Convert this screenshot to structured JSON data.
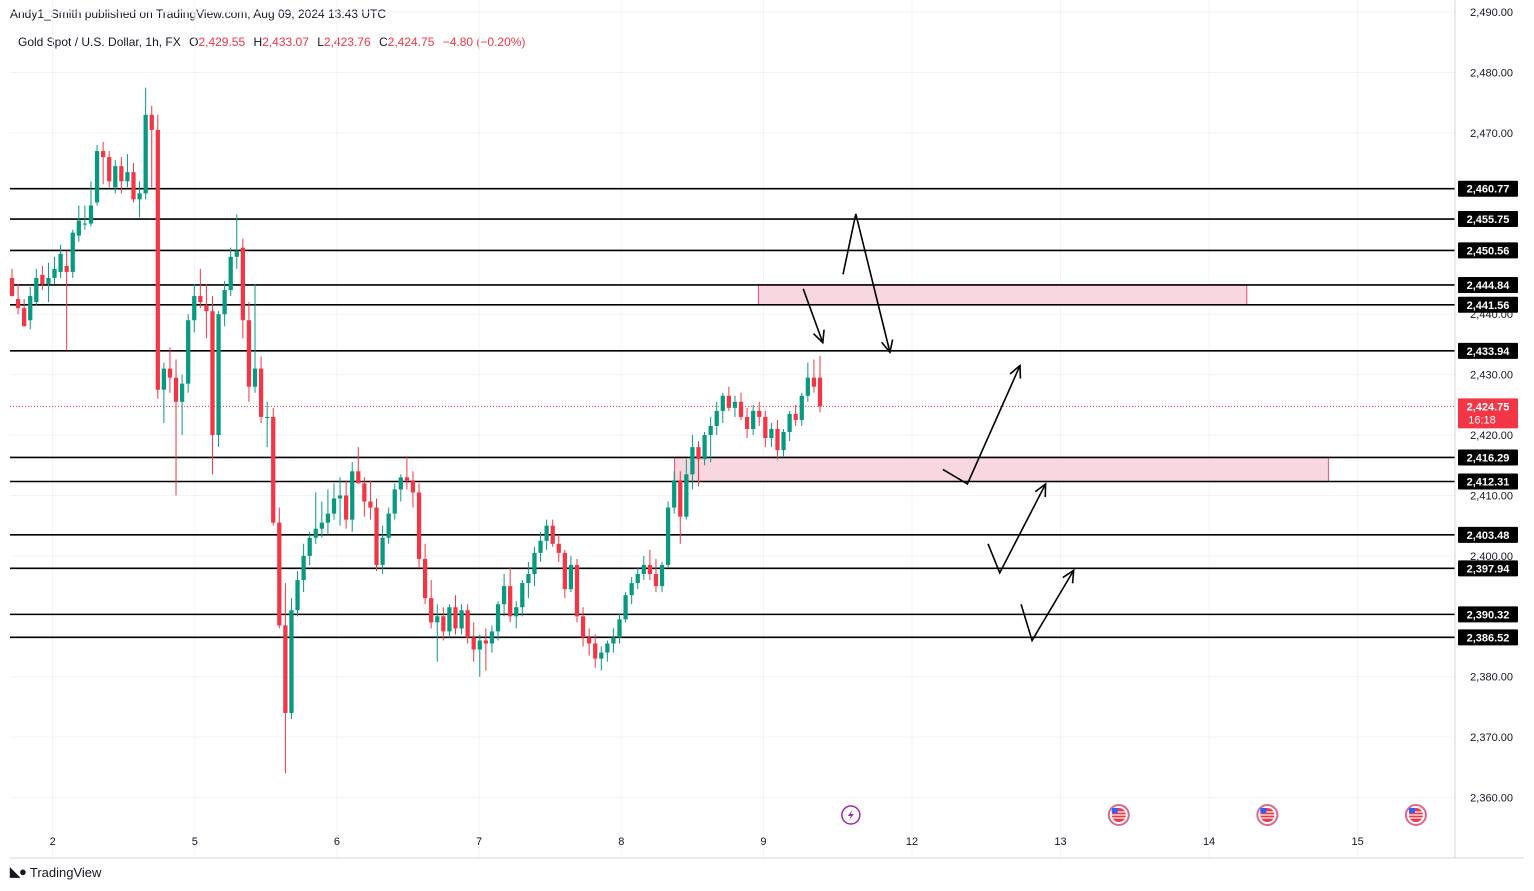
{
  "header": {
    "published": "Andy1_Smith published on TradingView.com, Aug 09, 2024 13:43 UTC",
    "symbol": "Gold Spot / U.S. Dollar, 1h, FX",
    "open_label": "O",
    "open": "2,429.55",
    "high_label": "H",
    "high": "2,433.07",
    "low_label": "L",
    "low": "2,423.76",
    "close_label": "C",
    "close": "2,424.75",
    "change": "−4.80 (−0.20%)"
  },
  "footer": {
    "brand": "TradingView"
  },
  "colors": {
    "up": "#089981",
    "down": "#f23645",
    "zone_fill": "#f8d0dc",
    "zone_border": "#e0668f",
    "level_line": "#000000",
    "current_price_bg": "#f23645"
  },
  "chart_data": {
    "type": "candlestick",
    "timeframe": "1h",
    "ylim": [
      2350,
      2492
    ],
    "y_ticks": [
      "2,490.00",
      "2,480.00",
      "2,470.00",
      "2,440.00",
      "2,430.00",
      "2,420.00",
      "2,410.00",
      "2,400.00",
      "2,380.00",
      "2,370.00",
      "2,360.00"
    ],
    "y_tick_values": [
      2490,
      2480,
      2470,
      2440,
      2430,
      2420,
      2410,
      2400,
      2380,
      2370,
      2360
    ],
    "x_ticks": [
      "2",
      "5",
      "6",
      "7",
      "8",
      "9",
      "12",
      "13",
      "14",
      "15"
    ],
    "x_tick_positions": [
      0,
      40,
      80,
      120,
      160,
      200,
      241.8,
      283.6,
      325.4,
      367.2
    ],
    "x_range": [
      -12,
      394.6
    ],
    "current_price": {
      "value": 2424.75,
      "label": "2,424.75",
      "countdown": "16:18"
    },
    "levels": [
      {
        "value": 2460.77,
        "label": "2,460.77"
      },
      {
        "value": 2455.75,
        "label": "2,455.75"
      },
      {
        "value": 2450.56,
        "label": "2,450.56"
      },
      {
        "value": 2444.84,
        "label": "2,444.84"
      },
      {
        "value": 2441.56,
        "label": "2,441.56"
      },
      {
        "value": 2433.94,
        "label": "2,433.94"
      },
      {
        "value": 2416.29,
        "label": "2,416.29"
      },
      {
        "value": 2412.31,
        "label": "2,412.31"
      },
      {
        "value": 2403.48,
        "label": "2,403.48"
      },
      {
        "value": 2397.94,
        "label": "2,397.94"
      },
      {
        "value": 2390.32,
        "label": "2,390.32"
      },
      {
        "value": 2386.52,
        "label": "2,386.52"
      }
    ],
    "zones": [
      {
        "x_start": 198.6,
        "x_end": 336.0,
        "y_top": 2444.84,
        "y_bottom": 2441.56
      },
      {
        "x_start": 175.0,
        "x_end": 359.0,
        "y_top": 2416.29,
        "y_bottom": 2412.31
      }
    ],
    "arrows": [
      {
        "points": [
          [
            222.4,
            2446.6
          ],
          [
            226.0,
            2456.6
          ],
          [
            235.6,
            2433.7
          ]
        ]
      },
      {
        "points": [
          [
            211.2,
            2444.2
          ],
          [
            216.7,
            2435.3
          ]
        ]
      },
      {
        "points": [
          [
            250.5,
            2414.3
          ],
          [
            257.4,
            2411.9
          ],
          [
            272.2,
            2431.5
          ]
        ]
      },
      {
        "points": [
          [
            263.2,
            2402.0
          ],
          [
            266.5,
            2397.2
          ],
          [
            279.4,
            2411.9
          ]
        ]
      },
      {
        "points": [
          [
            272.5,
            2392.0
          ],
          [
            275.6,
            2386.0
          ],
          [
            287.3,
            2397.6
          ]
        ]
      }
    ],
    "event_markers": [
      {
        "x": 224.6,
        "icon": "lightning-icon"
      },
      {
        "x": 300.0,
        "icon": "us-flag-icon"
      },
      {
        "x": 341.8,
        "icon": "us-flag-icon"
      },
      {
        "x": 383.6,
        "icon": "us-flag-icon"
      }
    ],
    "candles": [
      [
        2446.0,
        2447.5,
        2443.0,
        2443.0
      ],
      [
        2442.5,
        2445.0,
        2440.0,
        2441.0
      ],
      [
        2441.0,
        2442.5,
        2438.0,
        2438.0
      ],
      [
        2439.0,
        2444.5,
        2437.5,
        2443.0
      ],
      [
        2442.0,
        2447.5,
        2441.5,
        2446.0
      ],
      [
        2446.5,
        2448.0,
        2444.0,
        2445.0
      ],
      [
        2445.0,
        2448.5,
        2442.0,
        2446.0
      ],
      [
        2446.0,
        2449.5,
        2445.0,
        2447.5
      ],
      [
        2447.0,
        2451.5,
        2446.0,
        2450.0
      ],
      [
        2448.0,
        2450.5,
        2434.0,
        2447.0
      ],
      [
        2447.0,
        2454.0,
        2446.0,
        2453.5
      ],
      [
        2453.0,
        2458.0,
        2452.0,
        2455.5
      ],
      [
        2455.0,
        2458.0,
        2454.0,
        2455.0
      ],
      [
        2455.0,
        2462.0,
        2454.5,
        2458.0
      ],
      [
        2458.5,
        2468.0,
        2458.0,
        2467.0
      ],
      [
        2467.0,
        2468.5,
        2461.5,
        2466.0
      ],
      [
        2466.0,
        2467.0,
        2461.0,
        2462.0
      ],
      [
        2461.0,
        2465.5,
        2460.0,
        2464.5
      ],
      [
        2464.5,
        2466.0,
        2460.0,
        2462.0
      ],
      [
        2462.0,
        2466.5,
        2461.0,
        2463.5
      ],
      [
        2463.5,
        2465.0,
        2458.5,
        2459.0
      ],
      [
        2459.0,
        2462.0,
        2456.0,
        2460.0
      ],
      [
        2460.0,
        2477.5,
        2459.0,
        2473.0
      ],
      [
        2473.0,
        2474.5,
        2461.0,
        2470.5
      ],
      [
        2470.5,
        2473.0,
        2426.0,
        2427.5
      ],
      [
        2427.5,
        2432.0,
        2422.0,
        2431.0
      ],
      [
        2431.0,
        2434.5,
        2427.0,
        2429.5
      ],
      [
        2429.5,
        2432.5,
        2410.0,
        2425.5
      ],
      [
        2425.5,
        2430.0,
        2420.0,
        2428.5
      ],
      [
        2428.5,
        2440.0,
        2427.0,
        2439.0
      ],
      [
        2439.0,
        2445.0,
        2437.0,
        2443.0
      ],
      [
        2443.0,
        2447.5,
        2441.0,
        2442.0
      ],
      [
        2441.5,
        2445.0,
        2436.0,
        2440.5
      ],
      [
        2440.5,
        2443.0,
        2413.5,
        2420.0
      ],
      [
        2420.0,
        2440.5,
        2418.0,
        2440.0
      ],
      [
        2440.0,
        2445.5,
        2438.0,
        2444.0
      ],
      [
        2444.0,
        2451.0,
        2443.0,
        2449.5
      ],
      [
        2449.5,
        2456.5,
        2447.5,
        2450.5
      ],
      [
        2451.0,
        2452.5,
        2436.0,
        2439.0
      ],
      [
        2439.0,
        2442.0,
        2425.5,
        2428.0
      ],
      [
        2428.0,
        2445.0,
        2427.0,
        2431.0
      ],
      [
        2431.0,
        2433.0,
        2422.0,
        2423.0
      ],
      [
        2423.0,
        2425.5,
        2418.0,
        2423.0
      ],
      [
        2423.0,
        2424.5,
        2405.0,
        2405.5
      ],
      [
        2405.5,
        2408.0,
        2388.0,
        2388.5
      ],
      [
        2388.5,
        2395.5,
        2364.0,
        2374.0
      ],
      [
        2374.0,
        2393.0,
        2373.0,
        2391.0
      ],
      [
        2391.0,
        2397.5,
        2390.0,
        2396.0
      ],
      [
        2396.0,
        2402.0,
        2394.0,
        2400.0
      ],
      [
        2400.0,
        2404.0,
        2398.5,
        2403.0
      ],
      [
        2403.0,
        2410.5,
        2402.0,
        2404.5
      ],
      [
        2404.5,
        2409.0,
        2403.0,
        2405.5
      ],
      [
        2405.5,
        2411.0,
        2403.5,
        2407.0
      ],
      [
        2407.0,
        2412.0,
        2406.0,
        2409.5
      ],
      [
        2409.5,
        2413.0,
        2405.0,
        2410.0
      ],
      [
        2410.0,
        2412.5,
        2404.5,
        2406.0
      ],
      [
        2406.0,
        2415.5,
        2404.0,
        2414.0
      ],
      [
        2414.0,
        2418.0,
        2412.0,
        2412.0
      ],
      [
        2412.0,
        2413.0,
        2406.5,
        2409.0
      ],
      [
        2409.0,
        2412.5,
        2406.0,
        2408.0
      ],
      [
        2408.0,
        2409.5,
        2397.5,
        2398.5
      ],
      [
        2398.5,
        2405.0,
        2397.0,
        2403.0
      ],
      [
        2403.0,
        2408.0,
        2402.0,
        2407.0
      ],
      [
        2407.0,
        2412.0,
        2406.0,
        2411.0
      ],
      [
        2411.0,
        2413.5,
        2409.0,
        2413.0
      ],
      [
        2413.0,
        2416.5,
        2411.0,
        2412.5
      ],
      [
        2412.5,
        2414.0,
        2408.0,
        2410.5
      ],
      [
        2410.5,
        2412.0,
        2398.0,
        2399.5
      ],
      [
        2399.5,
        2402.0,
        2392.0,
        2393.0
      ],
      [
        2393.0,
        2396.0,
        2388.0,
        2389.0
      ],
      [
        2389.0,
        2392.0,
        2382.5,
        2390.0
      ],
      [
        2390.0,
        2391.5,
        2386.0,
        2387.5
      ],
      [
        2387.5,
        2392.0,
        2386.5,
        2391.5
      ],
      [
        2391.5,
        2393.5,
        2387.0,
        2388.0
      ],
      [
        2388.0,
        2392.0,
        2387.0,
        2391.0
      ],
      [
        2391.0,
        2392.0,
        2385.5,
        2386.5
      ],
      [
        2386.5,
        2389.0,
        2382.5,
        2384.5
      ],
      [
        2384.5,
        2387.0,
        2380.0,
        2386.0
      ],
      [
        2386.0,
        2388.0,
        2381.0,
        2385.5
      ],
      [
        2385.5,
        2388.5,
        2384.0,
        2387.5
      ],
      [
        2387.5,
        2392.5,
        2386.0,
        2392.0
      ],
      [
        2392.0,
        2397.0,
        2390.0,
        2395.0
      ],
      [
        2395.0,
        2398.0,
        2389.0,
        2390.0
      ],
      [
        2390.0,
        2392.5,
        2388.0,
        2391.5
      ],
      [
        2391.5,
        2396.0,
        2390.0,
        2395.5
      ],
      [
        2395.5,
        2399.0,
        2393.0,
        2397.0
      ],
      [
        2397.0,
        2401.5,
        2395.0,
        2400.5
      ],
      [
        2400.5,
        2404.0,
        2399.0,
        2402.5
      ],
      [
        2402.5,
        2406.0,
        2401.0,
        2405.0
      ],
      [
        2405.0,
        2406.0,
        2401.5,
        2402.0
      ],
      [
        2402.0,
        2403.5,
        2399.0,
        2400.5
      ],
      [
        2400.5,
        2401.0,
        2393.0,
        2394.5
      ],
      [
        2394.5,
        2400.0,
        2394.0,
        2398.5
      ],
      [
        2398.5,
        2399.5,
        2389.0,
        2390.0
      ],
      [
        2390.0,
        2391.5,
        2385.0,
        2386.5
      ],
      [
        2386.5,
        2388.0,
        2383.5,
        2385.5
      ],
      [
        2385.5,
        2387.0,
        2381.5,
        2383.0
      ],
      [
        2383.0,
        2385.0,
        2381.0,
        2384.0
      ],
      [
        2384.0,
        2386.0,
        2382.5,
        2385.5
      ],
      [
        2385.5,
        2388.0,
        2384.0,
        2386.5
      ],
      [
        2386.5,
        2390.5,
        2385.5,
        2389.5
      ],
      [
        2389.5,
        2394.0,
        2389.0,
        2393.5
      ],
      [
        2393.5,
        2396.5,
        2392.0,
        2395.5
      ],
      [
        2395.5,
        2398.0,
        2394.5,
        2397.0
      ],
      [
        2397.0,
        2400.0,
        2396.0,
        2398.5
      ],
      [
        2398.5,
        2401.0,
        2396.0,
        2397.0
      ],
      [
        2397.0,
        2399.5,
        2394.0,
        2395.0
      ],
      [
        2395.0,
        2399.0,
        2394.0,
        2398.5
      ],
      [
        2398.5,
        2409.0,
        2398.0,
        2408.0
      ],
      [
        2408.0,
        2414.0,
        2407.0,
        2412.5
      ],
      [
        2412.5,
        2414.0,
        2402.0,
        2406.5
      ],
      [
        2406.5,
        2416.0,
        2406.0,
        2413.5
      ],
      [
        2413.5,
        2420.0,
        2411.0,
        2418.0
      ],
      [
        2418.0,
        2419.0,
        2411.5,
        2416.0
      ],
      [
        2416.0,
        2420.5,
        2415.0,
        2420.0
      ],
      [
        2420.0,
        2423.0,
        2415.5,
        2421.5
      ],
      [
        2421.5,
        2425.5,
        2420.0,
        2424.0
      ],
      [
        2424.0,
        2427.0,
        2422.0,
        2426.5
      ],
      [
        2426.5,
        2428.0,
        2424.0,
        2424.5
      ],
      [
        2424.5,
        2426.5,
        2423.0,
        2425.5
      ],
      [
        2425.5,
        2427.0,
        2422.5,
        2423.0
      ],
      [
        2423.0,
        2424.5,
        2419.5,
        2421.0
      ],
      [
        2421.0,
        2425.0,
        2420.0,
        2424.0
      ],
      [
        2424.0,
        2425.5,
        2421.5,
        2423.0
      ],
      [
        2423.0,
        2424.0,
        2418.0,
        2419.5
      ],
      [
        2419.5,
        2422.0,
        2418.0,
        2421.0
      ],
      [
        2421.0,
        2422.5,
        2416.0,
        2417.5
      ],
      [
        2417.5,
        2421.0,
        2416.5,
        2420.5
      ],
      [
        2420.5,
        2424.0,
        2419.0,
        2423.5
      ],
      [
        2423.5,
        2425.0,
        2421.5,
        2422.5
      ],
      [
        2422.5,
        2427.0,
        2421.5,
        2426.5
      ],
      [
        2426.5,
        2432.0,
        2425.5,
        2429.5
      ],
      [
        2429.5,
        2432.5,
        2427.0,
        2428.0
      ],
      [
        2429.5,
        2433.07,
        2423.76,
        2424.75
      ]
    ]
  }
}
